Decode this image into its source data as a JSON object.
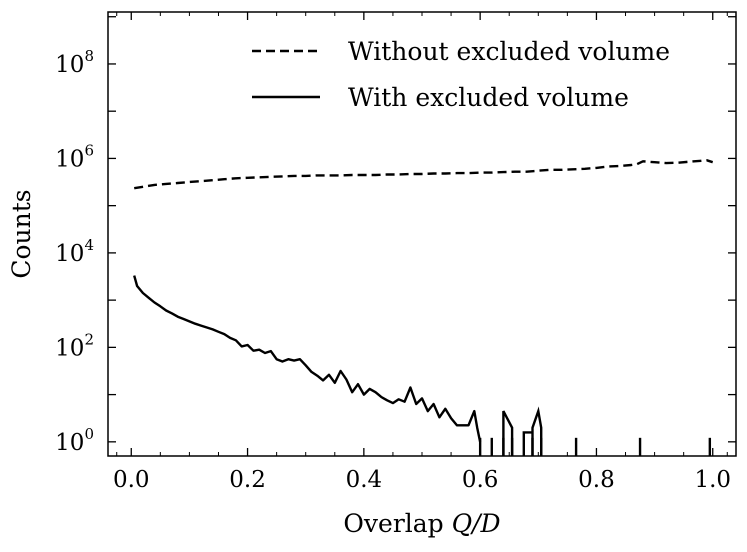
{
  "chart_data": {
    "type": "line",
    "xlabel_text": "Overlap ",
    "xlabel_math": "Q/D",
    "ylabel": "Counts",
    "yscale": "log",
    "xlim": [
      -0.04,
      1.04
    ],
    "ylim_log10": [
      -0.3,
      9.1
    ],
    "x_ticks": [
      {
        "value": 0.0,
        "label": "0.0"
      },
      {
        "value": 0.2,
        "label": "0.2"
      },
      {
        "value": 0.4,
        "label": "0.4"
      },
      {
        "value": 0.6,
        "label": "0.6"
      },
      {
        "value": 0.8,
        "label": "0.8"
      },
      {
        "value": 1.0,
        "label": "1.0"
      }
    ],
    "y_ticks": [
      {
        "exp": 0,
        "base": "10",
        "sup": "0"
      },
      {
        "exp": 2,
        "base": "10",
        "sup": "2"
      },
      {
        "exp": 4,
        "base": "10",
        "sup": "4"
      },
      {
        "exp": 6,
        "base": "10",
        "sup": "6"
      },
      {
        "exp": 8,
        "base": "10",
        "sup": "8"
      }
    ],
    "legend_position": "top-right",
    "series": [
      {
        "name": "Without excluded volume",
        "style": "dashed",
        "x": [
          0.005,
          0.02,
          0.04,
          0.06,
          0.08,
          0.1,
          0.12,
          0.14,
          0.16,
          0.18,
          0.2,
          0.22,
          0.24,
          0.26,
          0.28,
          0.3,
          0.32,
          0.34,
          0.36,
          0.38,
          0.4,
          0.42,
          0.44,
          0.46,
          0.48,
          0.5,
          0.52,
          0.54,
          0.56,
          0.58,
          0.6,
          0.62,
          0.64,
          0.66,
          0.68,
          0.7,
          0.72,
          0.74,
          0.76,
          0.78,
          0.8,
          0.82,
          0.84,
          0.86,
          0.87,
          0.88,
          0.9,
          0.92,
          0.94,
          0.96,
          0.98,
          0.99,
          1.0
        ],
        "y_log10": [
          5.37,
          5.4,
          5.44,
          5.46,
          5.48,
          5.5,
          5.52,
          5.54,
          5.56,
          5.58,
          5.59,
          5.6,
          5.61,
          5.62,
          5.63,
          5.63,
          5.64,
          5.64,
          5.64,
          5.65,
          5.65,
          5.65,
          5.66,
          5.66,
          5.67,
          5.67,
          5.68,
          5.68,
          5.69,
          5.69,
          5.7,
          5.7,
          5.71,
          5.72,
          5.72,
          5.74,
          5.76,
          5.76,
          5.77,
          5.78,
          5.8,
          5.83,
          5.84,
          5.86,
          5.88,
          5.94,
          5.92,
          5.9,
          5.91,
          5.93,
          5.95,
          5.96,
          5.92
        ]
      },
      {
        "name": "With excluded volume",
        "style": "solid",
        "x": [
          0.005,
          0.01,
          0.02,
          0.03,
          0.04,
          0.05,
          0.06,
          0.07,
          0.08,
          0.09,
          0.1,
          0.11,
          0.12,
          0.13,
          0.14,
          0.15,
          0.16,
          0.17,
          0.18,
          0.19,
          0.2,
          0.21,
          0.22,
          0.23,
          0.24,
          0.25,
          0.26,
          0.27,
          0.28,
          0.29,
          0.3,
          0.31,
          0.32,
          0.33,
          0.34,
          0.35,
          0.36,
          0.37,
          0.38,
          0.39,
          0.4,
          0.41,
          0.42,
          0.43,
          0.44,
          0.45,
          0.46,
          0.47,
          0.48,
          0.49,
          0.5,
          0.51,
          0.52,
          0.53,
          0.54,
          0.55,
          0.56,
          0.57,
          0.58,
          0.59,
          0.595,
          0.6
        ],
        "y_log10": [
          3.52,
          3.3,
          3.15,
          3.05,
          2.95,
          2.87,
          2.78,
          2.72,
          2.65,
          2.6,
          2.55,
          2.5,
          2.46,
          2.42,
          2.38,
          2.33,
          2.28,
          2.2,
          2.15,
          2.02,
          2.05,
          1.93,
          1.95,
          1.88,
          1.92,
          1.75,
          1.7,
          1.75,
          1.72,
          1.75,
          1.62,
          1.48,
          1.4,
          1.3,
          1.42,
          1.25,
          1.5,
          1.32,
          1.05,
          1.22,
          1.0,
          1.12,
          1.05,
          0.95,
          0.88,
          0.82,
          0.9,
          0.85,
          1.15,
          0.8,
          0.92,
          0.65,
          0.8,
          0.52,
          0.7,
          0.5,
          0.35,
          0.35,
          0.35,
          0.65,
          0.3,
          0.0
        ]
      }
    ],
    "sparse_bins": [
      {
        "x": 0.6,
        "y_log10": 0.0
      },
      {
        "x": 0.62,
        "y_log10": 0.0
      },
      {
        "x": 0.64,
        "y_log10": 0.0
      },
      {
        "x": 0.655,
        "y_log10": 0.0
      },
      {
        "x": 0.69,
        "y_log10": 0.0
      },
      {
        "x": 0.705,
        "y_log10": 0.0
      },
      {
        "x": 0.765,
        "y_log10": 0.0
      },
      {
        "x": 0.875,
        "y_log10": 0.0
      },
      {
        "x": 0.995,
        "y_log10": 0.0
      }
    ]
  }
}
